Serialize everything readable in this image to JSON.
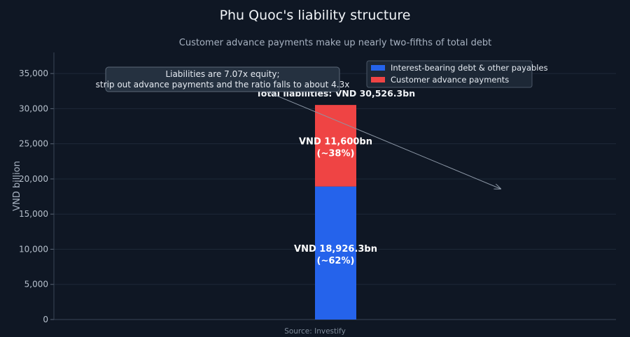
{
  "chart_data": {
    "type": "bar",
    "stacked": true,
    "title": "Phu Quoc's liability structure",
    "subtitle": "Customer advance payments make up nearly two-fifths of total debt",
    "xlabel": "",
    "ylabel": "VND billion",
    "ylim": [
      0,
      38000
    ],
    "yticks": [
      0,
      5000,
      10000,
      15000,
      20000,
      25000,
      30000,
      35000
    ],
    "ytick_labels": [
      "0",
      "5,000",
      "10,000",
      "15,000",
      "20,000",
      "25,000",
      "30,000",
      "35,000"
    ],
    "grid": true,
    "legend_position": "top-right",
    "series": [
      {
        "name": "Interest-bearing debt & other payables",
        "values": [
          18926.3
        ],
        "color": "#2563eb",
        "label_line1": "VND 18,926.3bn",
        "label_line2": "(~62%)"
      },
      {
        "name": "Customer advance payments",
        "values": [
          11600
        ],
        "color": "#ef4444",
        "label_line1": "VND 11,600bn",
        "label_line2": "(~38%)"
      }
    ],
    "total": 30526.3,
    "total_label": "Total liabilities: VND 30,526.3bn",
    "annotation": {
      "line1": "Liabilities are 7.07x equity;",
      "line2": "strip out advance payments and the ratio falls to about 4.3x"
    },
    "source": "Source: Investify"
  }
}
